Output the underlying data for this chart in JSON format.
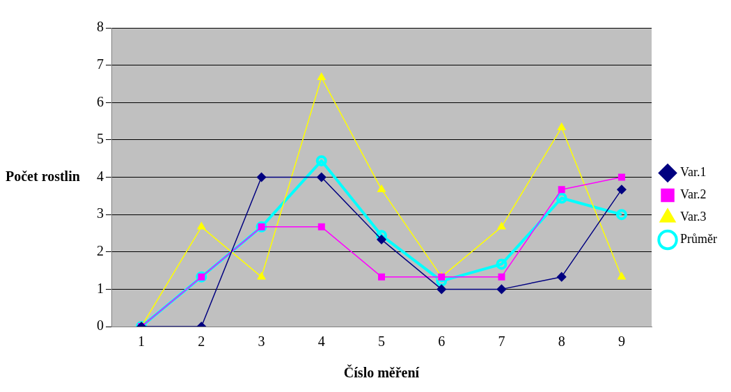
{
  "chart_data": {
    "type": "line",
    "xlabel": "Číslo měření",
    "ylabel": "Počet rostlin",
    "categories": [
      "1",
      "2",
      "3",
      "4",
      "5",
      "6",
      "7",
      "8",
      "9"
    ],
    "series": [
      {
        "name": "Var.1",
        "color": "#000080",
        "marker": "diamond",
        "values": [
          0,
          0,
          4,
          4,
          2.33,
          1,
          1,
          1.33,
          3.67
        ]
      },
      {
        "name": "Var.2",
        "color": "#ff00ff",
        "marker": "square",
        "values": [
          0,
          1.33,
          2.67,
          2.67,
          1.33,
          1.33,
          1.33,
          3.67,
          4
        ]
      },
      {
        "name": "Var.3",
        "color": "#ffff00",
        "marker": "triangle",
        "values": [
          0,
          2.67,
          1.33,
          6.67,
          3.67,
          1.33,
          2.67,
          5.33,
          1.33
        ]
      },
      {
        "name": "Průměr",
        "color": "#00ffff",
        "marker": "circle",
        "values": [
          0,
          1.33,
          2.67,
          4.44,
          2.44,
          1.22,
          1.67,
          3.44,
          3
        ]
      }
    ],
    "ylim": [
      0,
      8
    ],
    "yticks": [
      0,
      1,
      2,
      3,
      4,
      5,
      6,
      7,
      8
    ],
    "grid": "y",
    "legend": "right",
    "line_style": "solid"
  }
}
